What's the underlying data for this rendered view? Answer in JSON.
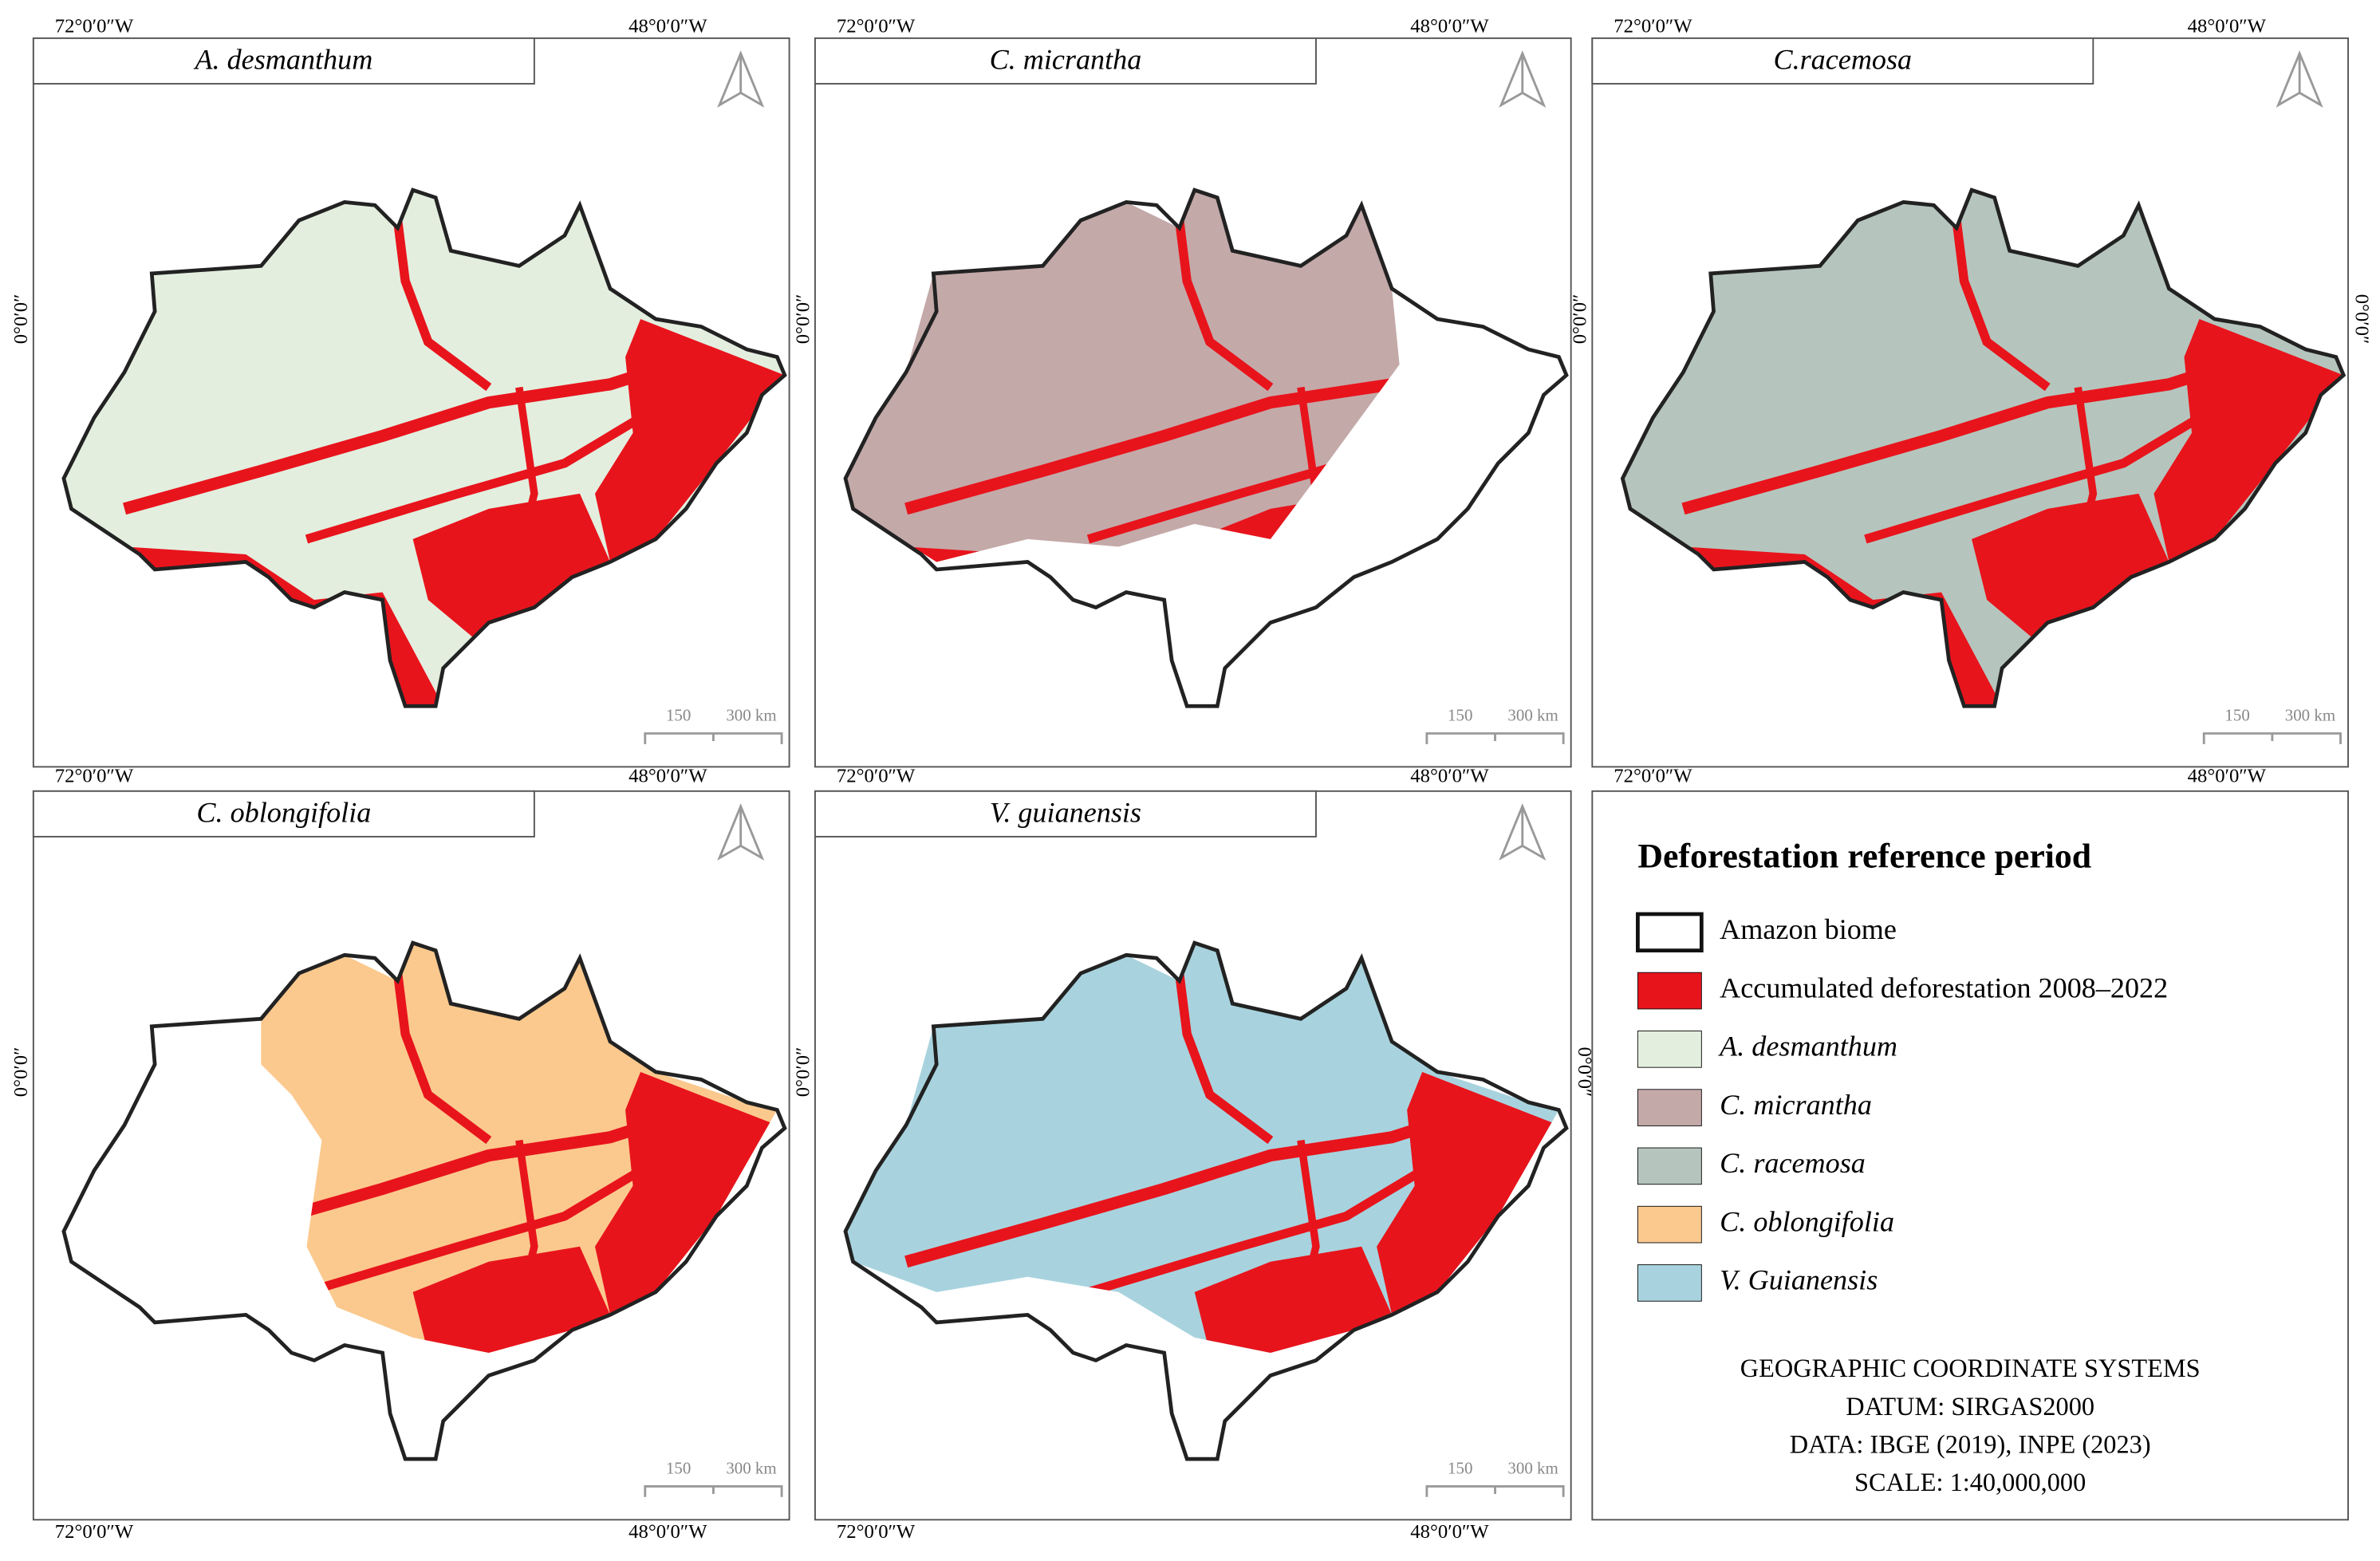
{
  "panels": [
    {
      "title": "A. desmanthum",
      "fill": "#e3eedf",
      "lon_labels": [
        "72°0′0″W",
        "48°0′0″W"
      ],
      "lat_label": "0°0′0″",
      "scale_labels": [
        "150",
        "300 km"
      ]
    },
    {
      "title": "C. micrantha",
      "fill": "#c4a9a9",
      "lon_labels": [
        "72°0′0″W",
        "48°0′0″W"
      ],
      "lat_label": "0°0′0″",
      "scale_labels": [
        "150",
        "300 km"
      ]
    },
    {
      "title": "C.racemosa",
      "fill": "#b5c5bd",
      "lon_labels": [
        "72°0′0″W",
        "48°0′0″W"
      ],
      "lat_label": "0°0′0″",
      "scale_labels": [
        "150",
        "300 km"
      ]
    },
    {
      "title": "C. oblongifolia",
      "fill": "#fbc98e",
      "lon_labels": [
        "72°0′0″W",
        "48°0′0″W"
      ],
      "lat_label": "0°0′0″",
      "scale_labels": [
        "150",
        "300 km"
      ]
    },
    {
      "title": "V. guianensis",
      "fill": "#a8d3de",
      "lon_labels": [
        "72°0′0″W",
        "48°0′0″W"
      ],
      "lat_label": "0°0′0″",
      "scale_labels": [
        "150",
        "300 km"
      ]
    }
  ],
  "deforestation_color": "#e8141c",
  "legend": {
    "title": "Deforestation reference period",
    "items": [
      {
        "label": "Amazon biome",
        "color": "#ffffff",
        "italic": false
      },
      {
        "label": "Accumulated deforestation 2008–2022",
        "color": "#e8141c",
        "italic": false
      },
      {
        "label": "A. desmanthum",
        "color": "#e3eedf",
        "italic": true
      },
      {
        "label": "C. micrantha",
        "color": "#c4a9a9",
        "italic": true
      },
      {
        "label": "C. racemosa",
        "color": "#b5c5bd",
        "italic": true
      },
      {
        "label": "C. oblongifolia",
        "color": "#fbc98e",
        "italic": true
      },
      {
        "label": "V. Guianensis",
        "color": "#a8d3de",
        "italic": true
      }
    ],
    "footer": [
      "GEOGRAPHIC COORDINATE SYSTEMS",
      "DATUM: SIRGAS2000",
      "DATA:  IBGE (2019), INPE (2023)",
      "SCALE: 1:40,000,000"
    ]
  }
}
